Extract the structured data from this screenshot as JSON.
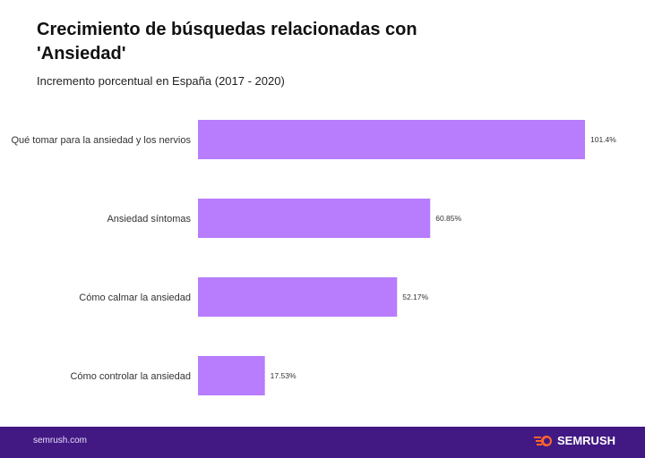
{
  "chart_data": {
    "type": "bar",
    "orientation": "horizontal",
    "title": "Crecimiento de búsquedas relacionadas con 'Ansiedad'",
    "subtitle": "Incremento porcentual en España (2017 - 2020)",
    "categories": [
      "Qué tomar para la ansiedad y los nervios",
      "Ansiedad síntomas",
      "Cómo calmar la ansiedad",
      "Cómo controlar la ansiedad"
    ],
    "values": [
      101.4,
      60.85,
      52.17,
      17.53
    ],
    "data_labels": [
      "101.4%",
      "60.85%",
      "52.17%",
      "17.53%"
    ],
    "xlim": [
      0,
      101.4
    ],
    "grid": false,
    "bar_color": "#b77dfd"
  },
  "footer": {
    "site": "semrush.com",
    "brand": "SEMRUSH",
    "background": "#421983",
    "logo_color": "#ff642d"
  }
}
